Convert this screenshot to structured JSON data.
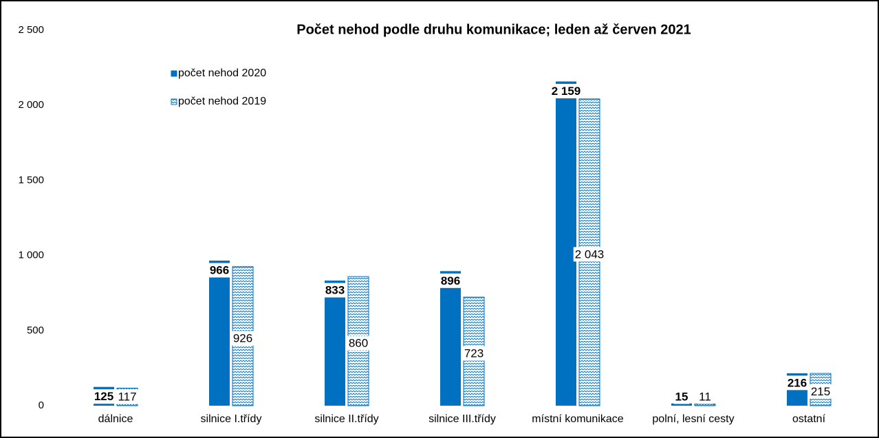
{
  "chart_data": {
    "type": "bar",
    "title": "Počet nehod podle druhu komunikace; leden až červen  2021",
    "categories": [
      "dálnice",
      "silnice I.třídy",
      "silnice II.třídy",
      "silnice III.třídy",
      "místní komunikace",
      "polní, lesní cesty",
      "ostatní"
    ],
    "series": [
      {
        "name": "počet nehod 2020",
        "color": "#0070c0",
        "pattern": "solid",
        "values": [
          125,
          966,
          833,
          896,
          2159,
          15,
          216
        ],
        "value_labels": [
          "125",
          "966",
          "833",
          "896",
          "2 159",
          "15",
          "216"
        ]
      },
      {
        "name": "počet nehod 2019",
        "color": "#0070c0",
        "pattern": "hatch",
        "values": [
          117,
          926,
          860,
          723,
          2043,
          11,
          215
        ],
        "value_labels": [
          "117",
          "926",
          "860",
          "723",
          "2 043",
          "11",
          "215"
        ]
      }
    ],
    "ylim": [
      0,
      2500
    ],
    "yticks": [
      0,
      500,
      {
        "value": 1000,
        "label": "1 000"
      },
      {
        "value": 1500,
        "label": "1 500"
      },
      {
        "value": 2000,
        "label": "2 000"
      },
      {
        "value": 2500,
        "label": "2 500"
      }
    ],
    "grid": false,
    "legend": "top-left"
  }
}
